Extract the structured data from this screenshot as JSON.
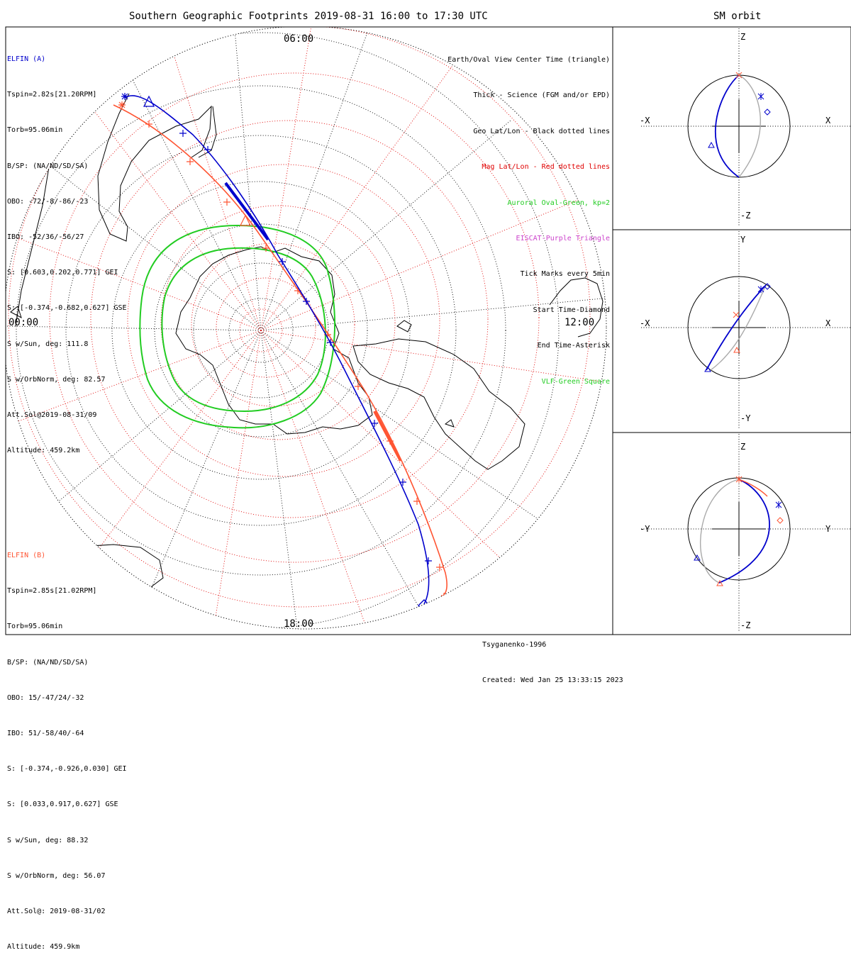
{
  "title": "Southern Geographic Footprints 2019-08-31 16:00 to 17:30 UTC",
  "orbit_title": "SM orbit",
  "time_labels": {
    "top": "06:00",
    "left": "00:00",
    "right": "12:00",
    "bottom": "18:00"
  },
  "elfin_a": {
    "name": "ELFIN (A)",
    "lines": [
      "Tspin=2.82s[21.20RPM]",
      "Torb=95.06min",
      "B/SP: (NA/ND/SD/SA)",
      "OBO: -72/-8/-86/-23",
      "IBO: -52/36/-56/27",
      "S: [0.603,0.202,0.771] GEI",
      "S: [-0.374,-0.682,0.627] GSE",
      "S w/Sun, deg: 111.8",
      "S w/OrbNorm, deg: 82.57",
      "Att.Sol@2019-08-31/09",
      "Altitude: 459.2km"
    ]
  },
  "elfin_b": {
    "name": "ELFIN (B)",
    "lines": [
      "Tspin=2.85s[21.02RPM]",
      "Torb=95.06min",
      "B/SP: (NA/ND/SD/SA)",
      "OBO: 15/-47/24/-32",
      "IBO: 51/-58/40/-64",
      "S: [-0.374,-0.926,0.030] GEI",
      "S: [0.033,0.917,0.627] GSE",
      "S w/Sun, deg: 88.32",
      "S w/OrbNorm, deg: 56.07",
      "Att.Sol@: 2019-08-31/02",
      "Altitude: 459.9km"
    ]
  },
  "legend": [
    {
      "text": "Earth/Oval View Center Time (triangle)",
      "color": "#000000"
    },
    {
      "text": "Thick - Science (FGM and/or EPD)",
      "color": "#000000"
    },
    {
      "text": "Geo Lat/Lon - Black dotted lines",
      "color": "#000000"
    },
    {
      "text": "Mag Lat/Lon - Red dotted lines",
      "color": "#e00000"
    },
    {
      "text": "Auroral Oval-Green, kp=2",
      "color": "#22cc22"
    },
    {
      "text": "EISCAT-Purple Triangle",
      "color": "#cc44cc"
    },
    {
      "text": "Tick Marks every 5min",
      "color": "#000000"
    },
    {
      "text": "Start Time-Diamond",
      "color": "#000000"
    },
    {
      "text": "End Time-Asterisk",
      "color": "#000000"
    },
    {
      "text": "VLF-Green Square",
      "color": "#22cc22"
    }
  ],
  "credit": {
    "model": "Tsyganenko-1996",
    "created": "Created: Wed Jan 25 13:33:15 2023"
  },
  "panels": [
    {
      "h_neg": "-X",
      "h_pos": "X",
      "v_pos": "Z",
      "v_neg": "-Z"
    },
    {
      "h_neg": "-X",
      "h_pos": "X",
      "v_pos": "Y",
      "v_neg": "-Y"
    },
    {
      "h_neg": "-Y",
      "h_pos": "Y",
      "v_pos": "Z",
      "v_neg": "-Z"
    }
  ],
  "colors": {
    "elfin_a": "#0000cc",
    "elfin_b": "#ff5533",
    "oval": "#22cc22",
    "geo_grid": "#000000",
    "mag_grid": "#e00000",
    "orbit_back": "#aaaaaa"
  }
}
